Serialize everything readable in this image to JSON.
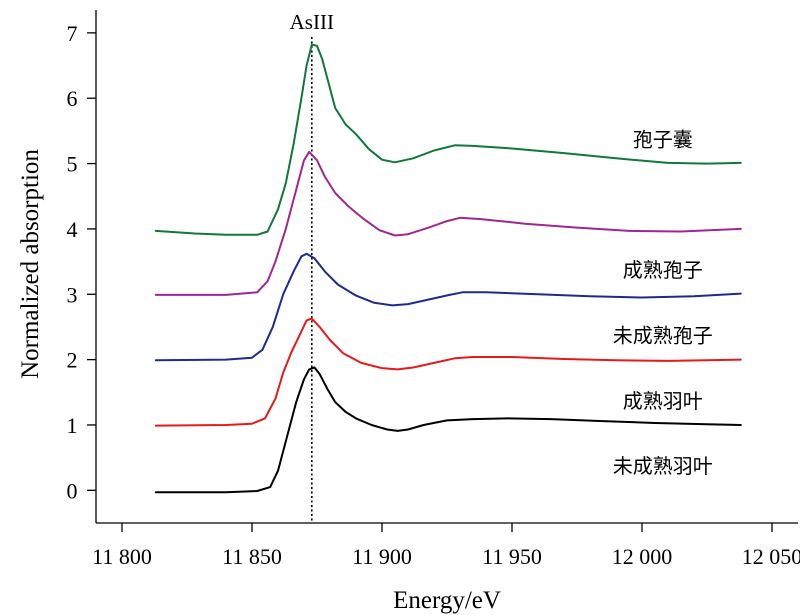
{
  "chart_data": {
    "type": "line",
    "xlabel": "Energy/eV",
    "ylabel": "Normalized absorption",
    "xlim": [
      11790,
      12060
    ],
    "ylim": [
      -0.5,
      7.35
    ],
    "x_ticks": [
      11800,
      11850,
      11900,
      11950,
      12000,
      12050
    ],
    "x_tick_labels": [
      "11 800",
      "11 850",
      "11 900",
      "11 950",
      "12 000",
      "12 050"
    ],
    "y_ticks": [
      0,
      1,
      2,
      3,
      4,
      5,
      6,
      7
    ],
    "y_tick_labels": [
      "0",
      "1",
      "2",
      "3",
      "4",
      "5",
      "6",
      "7"
    ],
    "grid": false,
    "annotation": {
      "label": "AsIII",
      "x": 11873
    },
    "series": [
      {
        "name": "未成熟羽叶",
        "color": "#000000",
        "label_x": 12008,
        "label_y": 0.37,
        "points": [
          [
            11813,
            -0.03
          ],
          [
            11840,
            -0.03
          ],
          [
            11852,
            -0.01
          ],
          [
            11857,
            0.05
          ],
          [
            11860,
            0.3
          ],
          [
            11864,
            0.9
          ],
          [
            11867,
            1.35
          ],
          [
            11870,
            1.7
          ],
          [
            11872,
            1.85
          ],
          [
            11874,
            1.88
          ],
          [
            11876,
            1.78
          ],
          [
            11879,
            1.55
          ],
          [
            11882,
            1.35
          ],
          [
            11886,
            1.2
          ],
          [
            11890,
            1.1
          ],
          [
            11896,
            1.0
          ],
          [
            11902,
            0.93
          ],
          [
            11906,
            0.91
          ],
          [
            11910,
            0.93
          ],
          [
            11916,
            1.0
          ],
          [
            11925,
            1.07
          ],
          [
            11935,
            1.09
          ],
          [
            11948,
            1.1
          ],
          [
            11965,
            1.09
          ],
          [
            11985,
            1.06
          ],
          [
            12005,
            1.03
          ],
          [
            12025,
            1.01
          ],
          [
            12038,
            1.0
          ]
        ]
      },
      {
        "name": "成熟羽叶",
        "color": "#e41a1c",
        "label_x": 12008,
        "label_y": 1.37,
        "points": [
          [
            11813,
            0.99
          ],
          [
            11840,
            1.0
          ],
          [
            11850,
            1.02
          ],
          [
            11855,
            1.1
          ],
          [
            11859,
            1.4
          ],
          [
            11862,
            1.8
          ],
          [
            11865,
            2.1
          ],
          [
            11868,
            2.35
          ],
          [
            11871,
            2.6
          ],
          [
            11873,
            2.63
          ],
          [
            11876,
            2.5
          ],
          [
            11880,
            2.3
          ],
          [
            11885,
            2.1
          ],
          [
            11892,
            1.95
          ],
          [
            11900,
            1.87
          ],
          [
            11906,
            1.85
          ],
          [
            11912,
            1.88
          ],
          [
            11920,
            1.95
          ],
          [
            11928,
            2.02
          ],
          [
            11935,
            2.04
          ],
          [
            11950,
            2.04
          ],
          [
            11970,
            2.01
          ],
          [
            11990,
            1.99
          ],
          [
            12010,
            1.98
          ],
          [
            12025,
            1.99
          ],
          [
            12038,
            2.0
          ]
        ]
      },
      {
        "name": "未成熟孢子",
        "color": "#1f2a8c",
        "label_x": 12008,
        "label_y": 2.37,
        "points": [
          [
            11813,
            1.99
          ],
          [
            11840,
            2.0
          ],
          [
            11850,
            2.03
          ],
          [
            11854,
            2.15
          ],
          [
            11858,
            2.5
          ],
          [
            11862,
            3.0
          ],
          [
            11866,
            3.35
          ],
          [
            11869,
            3.58
          ],
          [
            11871,
            3.62
          ],
          [
            11874,
            3.55
          ],
          [
            11878,
            3.35
          ],
          [
            11883,
            3.15
          ],
          [
            11890,
            2.98
          ],
          [
            11897,
            2.87
          ],
          [
            11904,
            2.83
          ],
          [
            11910,
            2.85
          ],
          [
            11918,
            2.92
          ],
          [
            11926,
            2.99
          ],
          [
            11931,
            3.03
          ],
          [
            11940,
            3.03
          ],
          [
            11960,
            3.0
          ],
          [
            11980,
            2.97
          ],
          [
            12000,
            2.95
          ],
          [
            12020,
            2.97
          ],
          [
            12038,
            3.01
          ]
        ]
      },
      {
        "name": "成熟孢子",
        "color": "#a0278f",
        "label_x": 12008,
        "label_y": 3.37,
        "points": [
          [
            11813,
            2.99
          ],
          [
            11840,
            2.99
          ],
          [
            11852,
            3.03
          ],
          [
            11856,
            3.2
          ],
          [
            11859,
            3.5
          ],
          [
            11863,
            4.0
          ],
          [
            11867,
            4.6
          ],
          [
            11870,
            5.05
          ],
          [
            11872,
            5.18
          ],
          [
            11875,
            5.05
          ],
          [
            11878,
            4.8
          ],
          [
            11882,
            4.55
          ],
          [
            11887,
            4.35
          ],
          [
            11893,
            4.15
          ],
          [
            11899,
            3.98
          ],
          [
            11905,
            3.9
          ],
          [
            11910,
            3.92
          ],
          [
            11918,
            4.02
          ],
          [
            11925,
            4.12
          ],
          [
            11930,
            4.17
          ],
          [
            11938,
            4.15
          ],
          [
            11955,
            4.08
          ],
          [
            11975,
            4.02
          ],
          [
            11995,
            3.97
          ],
          [
            12015,
            3.96
          ],
          [
            12038,
            4.0
          ]
        ]
      },
      {
        "name": "孢子囊",
        "color": "#10783a",
        "label_x": 12008,
        "label_y": 5.37,
        "points": [
          [
            11813,
            3.97
          ],
          [
            11828,
            3.93
          ],
          [
            11840,
            3.91
          ],
          [
            11852,
            3.91
          ],
          [
            11856,
            3.96
          ],
          [
            11860,
            4.3
          ],
          [
            11863,
            4.7
          ],
          [
            11866,
            5.3
          ],
          [
            11869,
            6.0
          ],
          [
            11871,
            6.5
          ],
          [
            11873,
            6.82
          ],
          [
            11875,
            6.8
          ],
          [
            11877,
            6.6
          ],
          [
            11879,
            6.3
          ],
          [
            11882,
            5.85
          ],
          [
            11886,
            5.6
          ],
          [
            11890,
            5.45
          ],
          [
            11895,
            5.22
          ],
          [
            11900,
            5.06
          ],
          [
            11905,
            5.02
          ],
          [
            11912,
            5.08
          ],
          [
            11920,
            5.2
          ],
          [
            11928,
            5.28
          ],
          [
            11935,
            5.27
          ],
          [
            11950,
            5.23
          ],
          [
            11970,
            5.16
          ],
          [
            11990,
            5.08
          ],
          [
            12010,
            5.01
          ],
          [
            12025,
            5.0
          ],
          [
            12038,
            5.01
          ]
        ]
      }
    ]
  }
}
